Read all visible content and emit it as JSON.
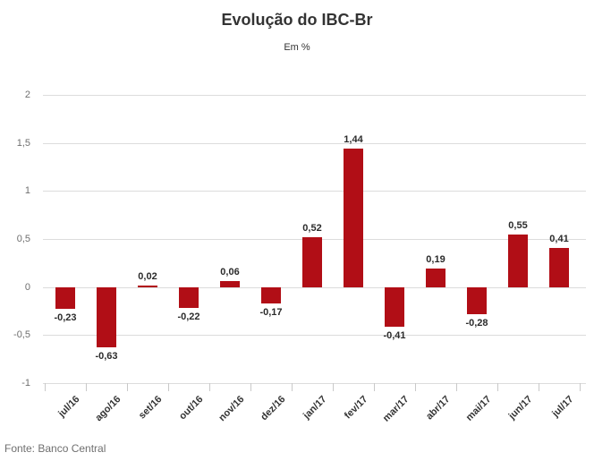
{
  "header": {
    "title": "Evolução do IBC-Br",
    "subtitle": "Em %"
  },
  "footer": {
    "source": "Fonte: Banco Central"
  },
  "chart_data": {
    "type": "bar",
    "title": "Evolução do IBC-Br",
    "subtitle": "Em %",
    "categories": [
      "jul/16",
      "ago/16",
      "set/16",
      "out/16",
      "nov/16",
      "dez/16",
      "jan/17",
      "fev/17",
      "mar/17",
      "abr/17",
      "mai/17",
      "jun/17",
      "jul/17"
    ],
    "values": [
      -0.23,
      -0.63,
      0.02,
      -0.22,
      0.06,
      -0.17,
      0.52,
      1.44,
      -0.41,
      0.19,
      -0.28,
      0.55,
      0.41
    ],
    "value_labels": [
      "-0,23",
      "-0,63",
      "0,02",
      "-0,22",
      "0,06",
      "-0,17",
      "0,52",
      "1,44",
      "-0,41",
      "0,19",
      "-0,28",
      "0,55",
      "0,41"
    ],
    "xlabel": "",
    "ylabel": "",
    "ylim": [
      -1,
      2
    ],
    "ytick_step": 0.5,
    "ytick_labels": [
      "2",
      "1,5",
      "1",
      "0,5",
      "0",
      "-0,5",
      "-1"
    ],
    "grid": true,
    "legend": false,
    "bar_color": "#b10e16",
    "gridline_color": "#dcdcdc",
    "label_color": "#2b2b2b",
    "source": "Fonte: Banco Central"
  }
}
